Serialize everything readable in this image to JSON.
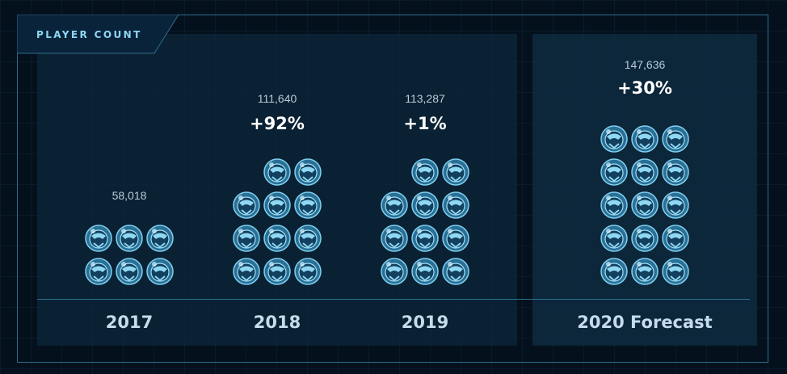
{
  "title": "PLAYER COUNT",
  "chart_data": {
    "type": "bar",
    "categories": [
      "2017",
      "2018",
      "2019",
      "2020 Forecast"
    ],
    "values": [
      58018,
      111640,
      113287,
      147636
    ],
    "value_labels": [
      "58,018",
      "111,640",
      "113,287",
      "147,636"
    ],
    "growth_labels": [
      "",
      "+92%",
      "+1%",
      "+30%"
    ],
    "icon_counts": [
      6,
      11,
      11,
      15
    ],
    "icon": "helmet-icon",
    "colors": {
      "accent": "#8fd6f2",
      "icon": "#5fb3dc",
      "background": "#04111d",
      "panel": "#0c263a"
    }
  }
}
